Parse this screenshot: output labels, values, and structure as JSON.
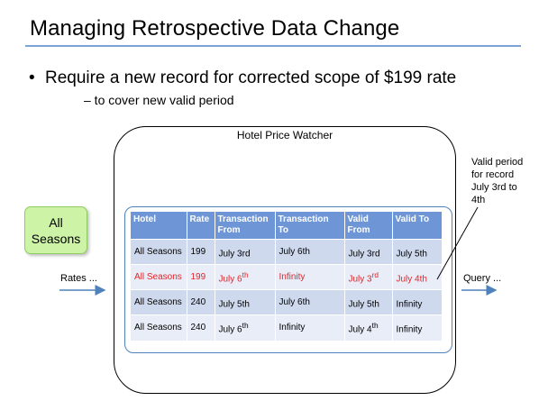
{
  "slide": {
    "title": "Managing Retrospective Data Change",
    "bullet": "Require a new record for corrected scope of $199 rate",
    "sub_bullet": "– to cover new valid period"
  },
  "system": {
    "title": "Hotel Price Watcher"
  },
  "seasons_box": {
    "line1": "All",
    "line2": "Seasons"
  },
  "rates_label": "Rates ...",
  "query_label": "Query ...",
  "valid_note": {
    "line1": "Valid period",
    "line2": "for record",
    "line3": "July 3rd to",
    "line4": "4th"
  },
  "table": {
    "headers": [
      {
        "line1": "Hotel",
        "line2": ""
      },
      {
        "line1": "Rate",
        "line2": ""
      },
      {
        "line1": "Transaction",
        "line2": "From"
      },
      {
        "line1": "Transaction",
        "line2": "To"
      },
      {
        "line1": "Valid",
        "line2": "From"
      },
      {
        "line1": "Valid To",
        "line2": ""
      }
    ],
    "rows": [
      {
        "hotel": "All Seasons",
        "rate": "199",
        "tx_from": "July 3rd",
        "tx_from_sup": "",
        "tx_to": "July 6th",
        "valid_from": "July 3rd",
        "valid_from_sup": "",
        "valid_to": "July 5th",
        "valid_to_sup": ""
      },
      {
        "hotel": "All Seasons",
        "rate": "199",
        "tx_from": "July 6",
        "tx_from_sup": "th",
        "tx_to": "Infinity",
        "valid_from": "July 3",
        "valid_from_sup": "rd",
        "valid_to": "July 4th",
        "valid_to_sup": ""
      },
      {
        "hotel": "All Seasons",
        "rate": "240",
        "tx_from": "July 5th",
        "tx_from_sup": "",
        "tx_to": "July 6th",
        "valid_from": "July 5th",
        "valid_from_sup": "",
        "valid_to": "Infinity",
        "valid_to_sup": ""
      },
      {
        "hotel": "All Seasons",
        "rate": "240",
        "tx_from": "July 6",
        "tx_from_sup": "th",
        "tx_to": "Infinity",
        "valid_from": "July 4",
        "valid_from_sup": "th",
        "valid_to": "Infinity",
        "valid_to_sup": ""
      }
    ]
  },
  "colors": {
    "header_blue": "#6e96d6",
    "highlight_red": "#e0262c",
    "season_green": "#ccf3a6",
    "rule_blue": "#7ba3d6"
  }
}
